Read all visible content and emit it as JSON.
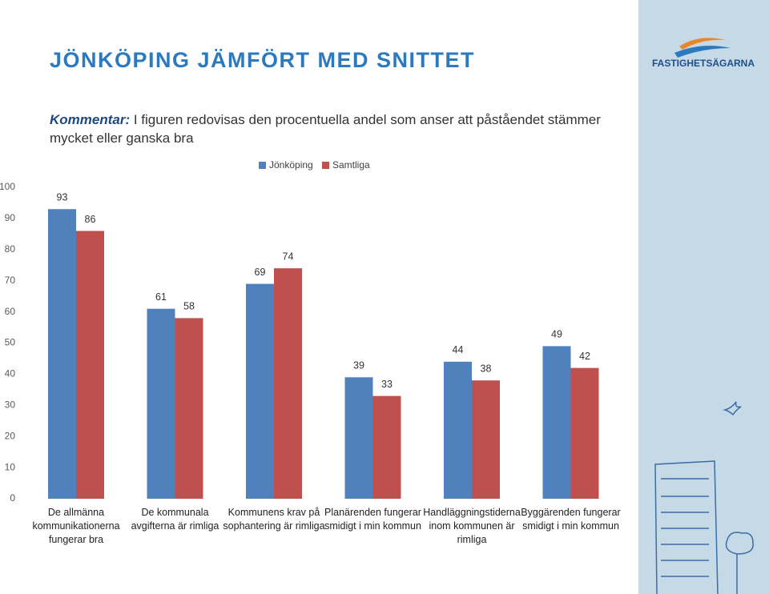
{
  "logo": "FASTIGHETSÄGARNA",
  "chart_data": {
    "type": "bar",
    "title": "JÖNKÖPING JÄMFÖRT MED SNITTET",
    "note_label": "Kommentar:",
    "note": "I figuren redovisas den procentuella andel som anser att påståendet stämmer mycket eller ganska bra",
    "categories": [
      "De allmänna kommunikationerna fungerar bra",
      "De kommunala avgifterna är rimliga",
      "Kommunens krav på sophantering är rimliga",
      "Planärenden fungerar smidigt i min kommun",
      "Handläggningstiderna inom kommunen är rimliga",
      "Byggärenden fungerar smidigt i min kommun"
    ],
    "series": [
      {
        "name": "Jönköping",
        "color": "#4f81bd",
        "values": [
          93,
          61,
          69,
          39,
          44,
          49
        ]
      },
      {
        "name": "Samtliga",
        "color": "#c0504d",
        "values": [
          86,
          58,
          74,
          33,
          38,
          42
        ]
      }
    ],
    "ylim": [
      0,
      100
    ],
    "yticks": [
      0,
      10,
      20,
      30,
      40,
      50,
      60,
      70,
      80,
      90,
      100
    ],
    "grid": false,
    "legend": "top"
  }
}
